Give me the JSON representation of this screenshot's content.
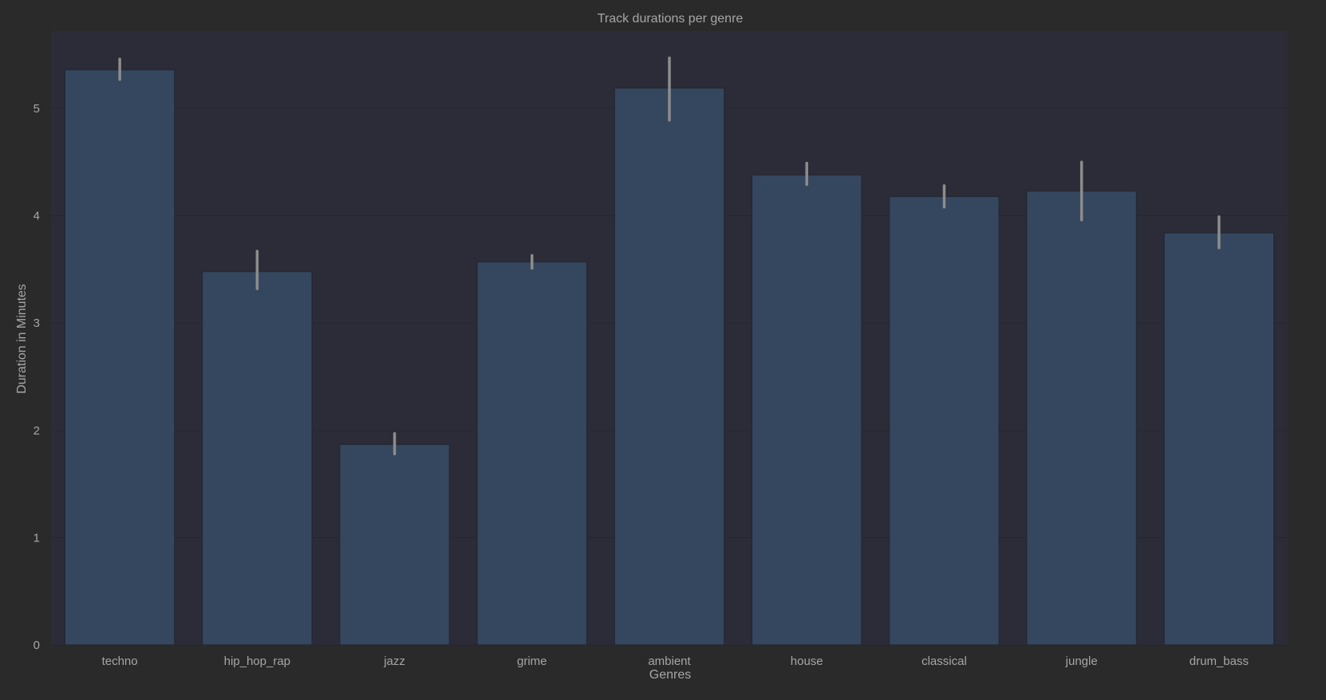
{
  "chart_data": {
    "type": "bar",
    "title": "Track durations per genre",
    "xlabel": "Genres",
    "ylabel": "Duration in Minutes",
    "categories": [
      "techno",
      "hip_hop_rap",
      "jazz",
      "grime",
      "ambient",
      "house",
      "classical",
      "jungle",
      "drum_bass"
    ],
    "values": [
      5.36,
      3.48,
      1.87,
      3.57,
      5.19,
      4.38,
      4.18,
      4.23,
      3.84
    ],
    "error_bars": [
      [
        5.27,
        5.46
      ],
      [
        3.32,
        3.67
      ],
      [
        1.78,
        1.97
      ],
      [
        3.51,
        3.63
      ],
      [
        4.89,
        5.47
      ],
      [
        4.29,
        4.49
      ],
      [
        4.08,
        4.28
      ],
      [
        3.96,
        4.5
      ],
      [
        3.7,
        3.99
      ]
    ],
    "ylim": [
      0,
      5.72
    ],
    "yticks": [
      0,
      1,
      2,
      3,
      4,
      5
    ],
    "grid": true,
    "colors": {
      "figure_bg": "#2a2a2a",
      "plot_bg": "#2c2c38",
      "bar": "#34475e",
      "bar_edge": "#242934",
      "error_bar": "#8c8c8c",
      "grid": "#262630",
      "text": "#a6a6a6"
    }
  }
}
